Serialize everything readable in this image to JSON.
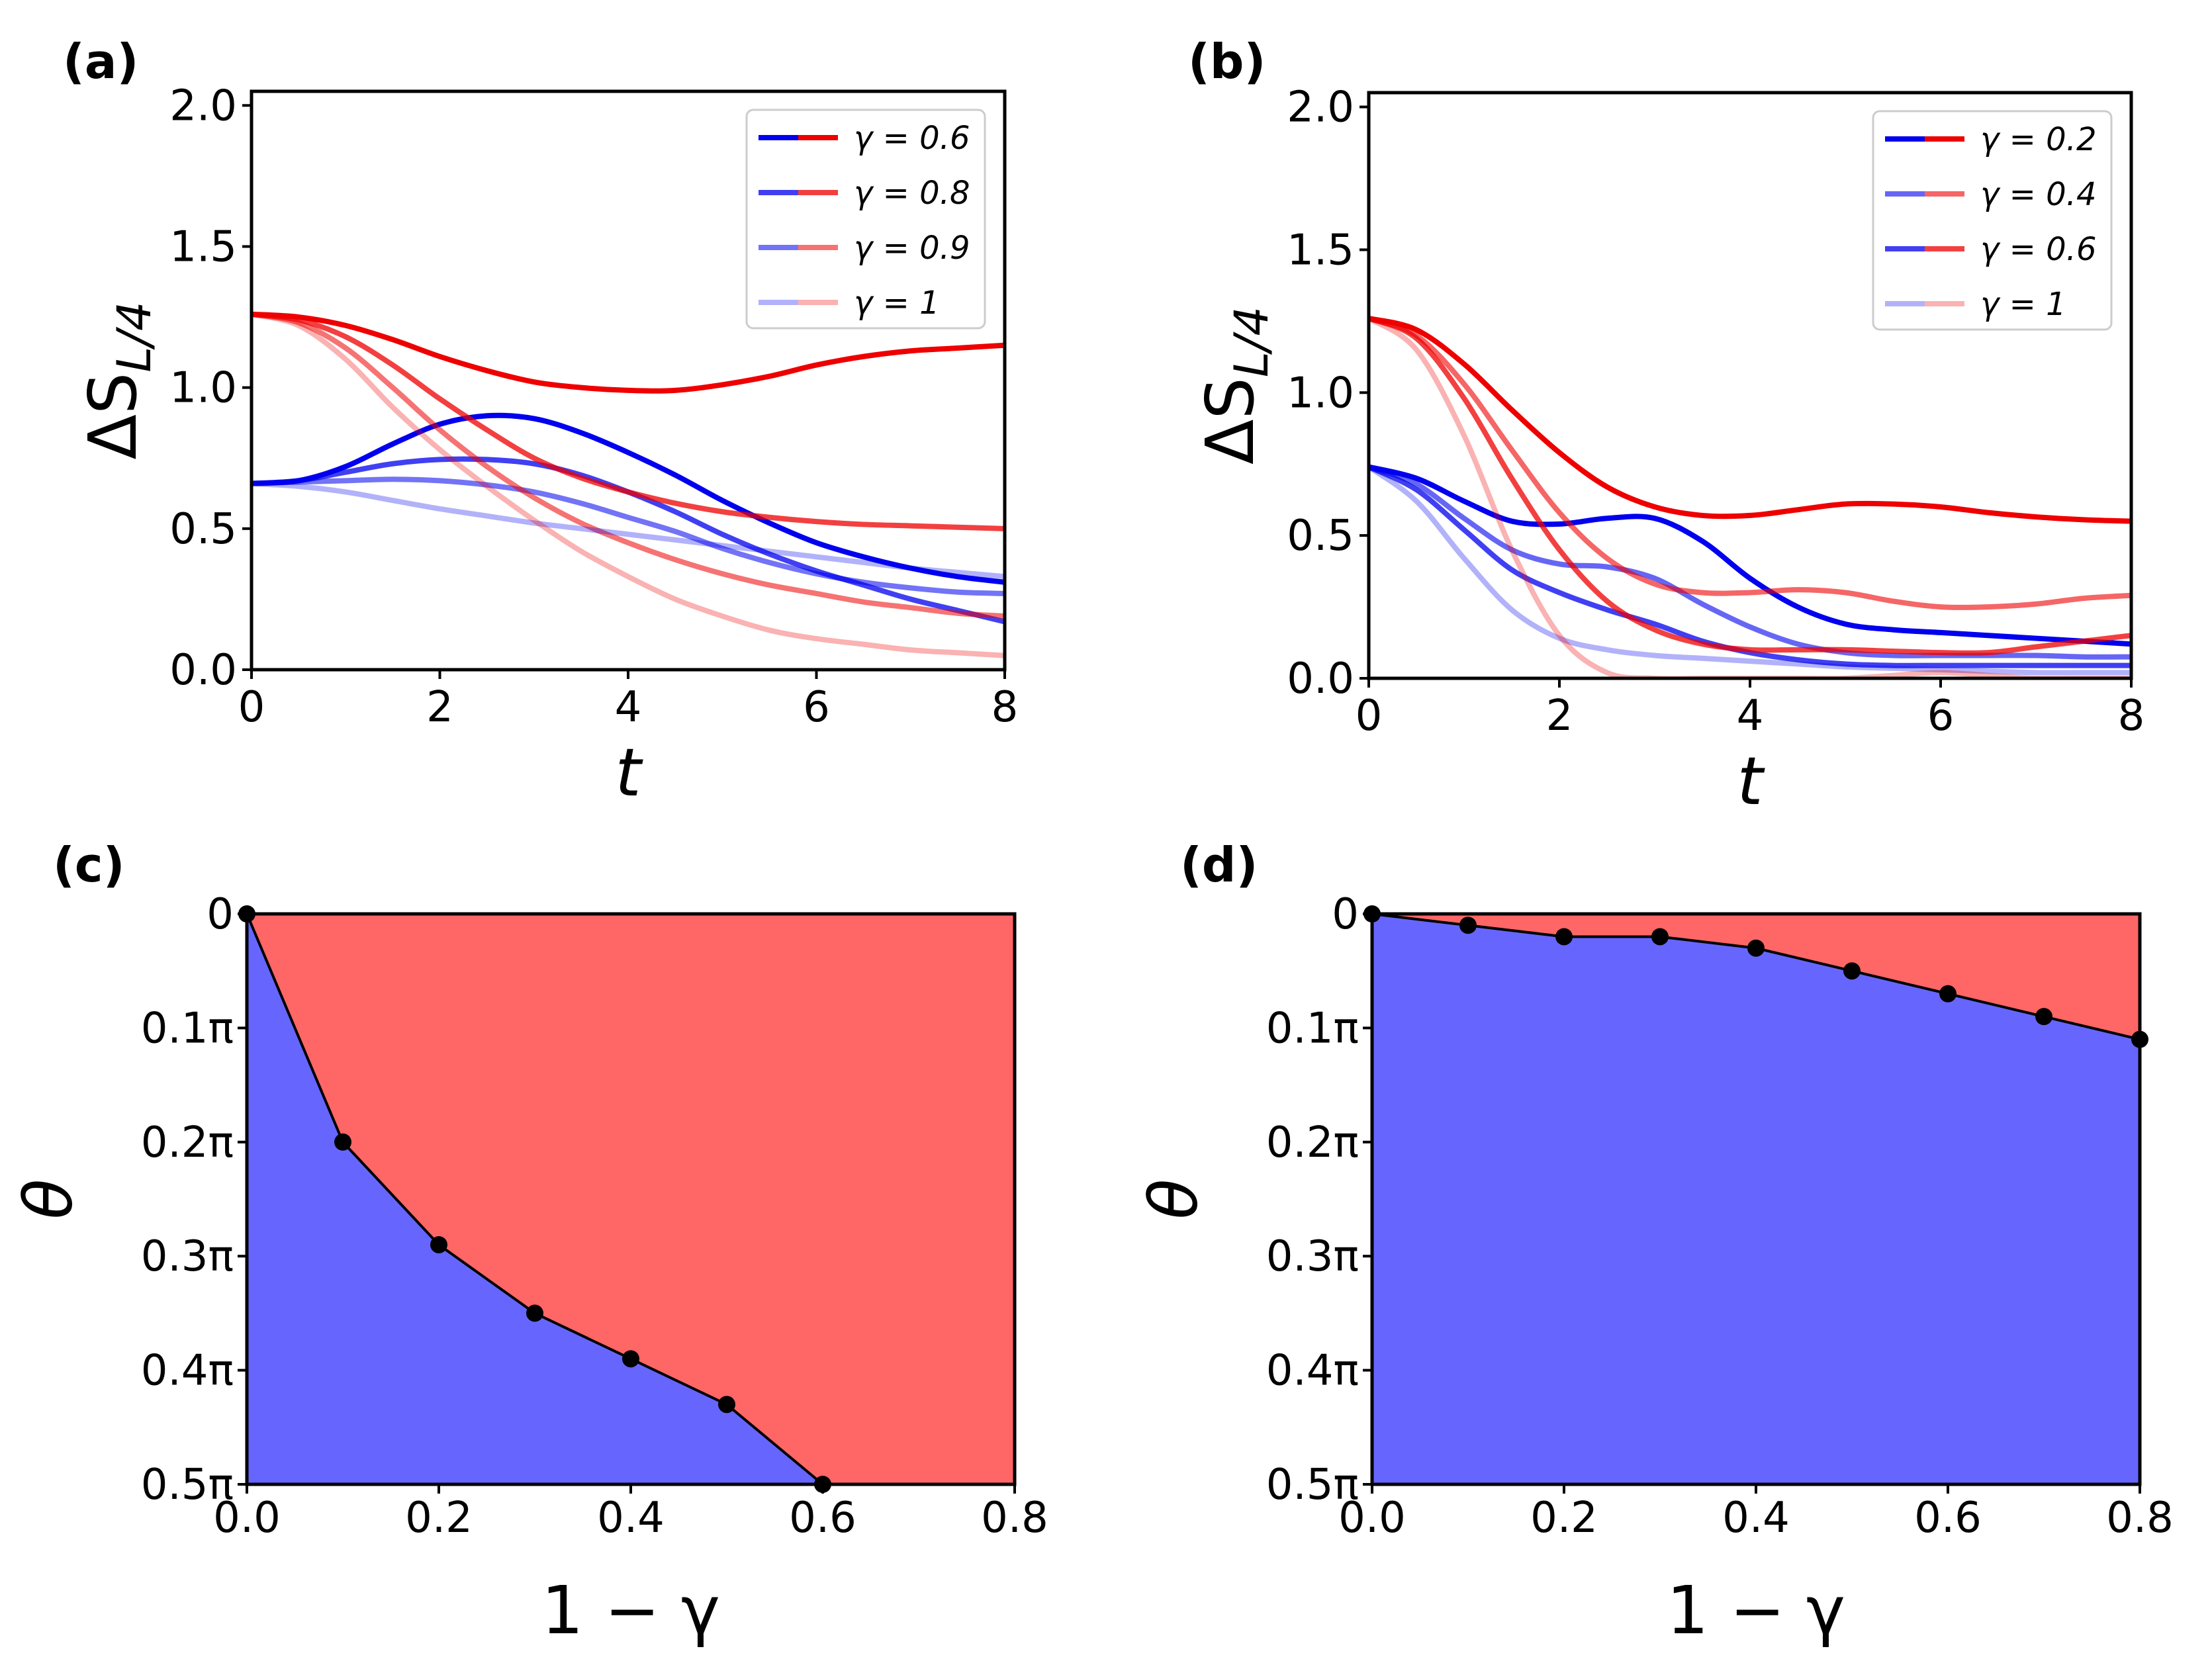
{
  "figure": {
    "panels": [
      "(a)",
      "(b)",
      "(c)",
      "(d)"
    ]
  },
  "chart_data": [
    {
      "id": "a",
      "panel_label": "(a)",
      "type": "line",
      "xlabel": "t",
      "ylabel": "ΔS_{L/4}",
      "ylabel_parts": {
        "main": "ΔS",
        "sub": "L/4"
      },
      "xlim": [
        0,
        8
      ],
      "ylim": [
        0,
        2.05
      ],
      "xticks": [
        0,
        2,
        4,
        6,
        8
      ],
      "xtick_labels": [
        "0",
        "2",
        "4",
        "6",
        "8"
      ],
      "yticks": [
        0,
        0.5,
        1,
        1.5,
        2
      ],
      "ytick_labels": [
        "0.0",
        "0.5",
        "1.0",
        "1.5",
        "2.0"
      ],
      "legend_position": "top-right",
      "legend": [
        {
          "label": "γ = 0.6",
          "alpha": 1.0
        },
        {
          "label": "γ = 0.8",
          "alpha": 0.75
        },
        {
          "label": "γ = 0.9",
          "alpha": 0.55
        },
        {
          "label": "γ = 1",
          "alpha": 0.3
        }
      ],
      "colors": {
        "blue": "#0000ee",
        "red": "#ee0000"
      },
      "series": [
        {
          "name": "blue γ=0.6",
          "color": "#0000ee",
          "alpha": 1.0,
          "x": [
            0,
            0.5,
            1,
            1.5,
            2,
            2.5,
            3,
            3.5,
            4,
            4.5,
            5,
            5.5,
            6,
            6.5,
            7,
            7.5,
            8
          ],
          "y": [
            0.66,
            0.67,
            0.72,
            0.8,
            0.87,
            0.9,
            0.89,
            0.84,
            0.77,
            0.69,
            0.6,
            0.52,
            0.45,
            0.4,
            0.36,
            0.33,
            0.31
          ]
        },
        {
          "name": "red γ=0.6",
          "color": "#ee0000",
          "alpha": 1.0,
          "x": [
            0,
            0.5,
            1,
            1.5,
            2,
            2.5,
            3,
            3.5,
            4,
            4.5,
            5,
            5.5,
            6,
            6.5,
            7,
            7.5,
            8
          ],
          "y": [
            1.26,
            1.25,
            1.22,
            1.17,
            1.11,
            1.06,
            1.02,
            1.0,
            0.99,
            0.99,
            1.01,
            1.04,
            1.08,
            1.11,
            1.13,
            1.14,
            1.15
          ]
        },
        {
          "name": "blue γ=0.8",
          "color": "#0000ee",
          "alpha": 0.75,
          "x": [
            0,
            0.5,
            1,
            1.5,
            2,
            2.5,
            3,
            3.5,
            4,
            4.5,
            5,
            5.5,
            6,
            6.5,
            7,
            7.5,
            8
          ],
          "y": [
            0.66,
            0.67,
            0.7,
            0.73,
            0.745,
            0.745,
            0.73,
            0.69,
            0.63,
            0.56,
            0.48,
            0.41,
            0.35,
            0.3,
            0.25,
            0.21,
            0.17
          ]
        },
        {
          "name": "red γ=0.8",
          "color": "#ee0000",
          "alpha": 0.75,
          "x": [
            0,
            0.5,
            1,
            1.5,
            2,
            2.5,
            3,
            3.5,
            4,
            4.5,
            5,
            5.5,
            6,
            6.5,
            7,
            7.5,
            8
          ],
          "y": [
            1.26,
            1.24,
            1.18,
            1.08,
            0.96,
            0.85,
            0.75,
            0.68,
            0.63,
            0.59,
            0.56,
            0.54,
            0.525,
            0.515,
            0.51,
            0.505,
            0.5
          ]
        },
        {
          "name": "blue γ=0.9",
          "color": "#0000ee",
          "alpha": 0.55,
          "x": [
            0,
            0.5,
            1,
            1.5,
            2,
            2.5,
            3,
            3.5,
            4,
            4.5,
            5,
            5.5,
            6,
            6.5,
            7,
            7.5,
            8
          ],
          "y": [
            0.66,
            0.665,
            0.67,
            0.675,
            0.67,
            0.655,
            0.63,
            0.59,
            0.54,
            0.49,
            0.43,
            0.38,
            0.34,
            0.31,
            0.29,
            0.275,
            0.27
          ]
        },
        {
          "name": "red γ=0.9",
          "color": "#ee0000",
          "alpha": 0.55,
          "x": [
            0,
            0.5,
            1,
            1.5,
            2,
            2.5,
            3,
            3.5,
            4,
            4.5,
            5,
            5.5,
            6,
            6.5,
            7,
            7.5,
            8
          ],
          "y": [
            1.26,
            1.23,
            1.14,
            1.0,
            0.85,
            0.72,
            0.61,
            0.52,
            0.45,
            0.39,
            0.34,
            0.3,
            0.27,
            0.24,
            0.22,
            0.2,
            0.19
          ]
        },
        {
          "name": "blue γ=1",
          "color": "#0000ee",
          "alpha": 0.3,
          "x": [
            0,
            0.5,
            1,
            1.5,
            2,
            2.5,
            3,
            3.5,
            4,
            4.5,
            5,
            5.5,
            6,
            6.5,
            7,
            7.5,
            8
          ],
          "y": [
            0.66,
            0.65,
            0.63,
            0.6,
            0.57,
            0.545,
            0.52,
            0.5,
            0.48,
            0.46,
            0.44,
            0.42,
            0.4,
            0.38,
            0.36,
            0.345,
            0.33
          ]
        },
        {
          "name": "red γ=1",
          "color": "#ee0000",
          "alpha": 0.3,
          "x": [
            0,
            0.5,
            1,
            1.5,
            2,
            2.5,
            3,
            3.5,
            4,
            4.5,
            5,
            5.5,
            6,
            6.5,
            7,
            7.5,
            8
          ],
          "y": [
            1.26,
            1.22,
            1.1,
            0.93,
            0.78,
            0.65,
            0.53,
            0.42,
            0.33,
            0.25,
            0.19,
            0.14,
            0.11,
            0.09,
            0.07,
            0.06,
            0.05
          ]
        }
      ]
    },
    {
      "id": "b",
      "panel_label": "(b)",
      "type": "line",
      "xlabel": "t",
      "ylabel": "ΔS_{L/4}",
      "ylabel_parts": {
        "main": "ΔS",
        "sub": "L/4"
      },
      "xlim": [
        0,
        8
      ],
      "ylim": [
        0,
        2.05
      ],
      "xticks": [
        0,
        2,
        4,
        6,
        8
      ],
      "xtick_labels": [
        "0",
        "2",
        "4",
        "6",
        "8"
      ],
      "yticks": [
        0,
        0.5,
        1,
        1.5,
        2
      ],
      "ytick_labels": [
        "0.0",
        "0.5",
        "1.0",
        "1.5",
        "2.0"
      ],
      "legend_position": "top-right",
      "legend": [
        {
          "label": "γ = 0.2",
          "alpha": 1.0
        },
        {
          "label": "γ = 0.4",
          "alpha": 0.6
        },
        {
          "label": "γ = 0.6",
          "alpha": 0.75
        },
        {
          "label": "γ = 1",
          "alpha": 0.3
        }
      ],
      "colors": {
        "blue": "#0000ee",
        "red": "#ee0000"
      },
      "series": [
        {
          "name": "blue γ=0.2",
          "color": "#0000ee",
          "alpha": 1.0,
          "x": [
            0,
            0.5,
            1,
            1.5,
            2,
            2.5,
            3,
            3.5,
            4,
            4.5,
            5,
            5.5,
            6,
            6.5,
            7,
            7.5,
            8
          ],
          "y": [
            0.74,
            0.7,
            0.62,
            0.55,
            0.54,
            0.56,
            0.56,
            0.48,
            0.35,
            0.25,
            0.19,
            0.17,
            0.16,
            0.15,
            0.14,
            0.13,
            0.12
          ]
        },
        {
          "name": "red γ=0.2",
          "color": "#ee0000",
          "alpha": 1.0,
          "x": [
            0,
            0.5,
            1,
            1.5,
            2,
            2.5,
            3,
            3.5,
            4,
            4.5,
            5,
            5.5,
            6,
            6.5,
            7,
            7.5,
            8
          ],
          "y": [
            1.26,
            1.22,
            1.1,
            0.94,
            0.79,
            0.67,
            0.6,
            0.57,
            0.57,
            0.59,
            0.61,
            0.61,
            0.6,
            0.58,
            0.565,
            0.555,
            0.55
          ]
        },
        {
          "name": "blue γ=0.4",
          "color": "#0000ee",
          "alpha": 0.6,
          "x": [
            0,
            0.5,
            1,
            1.5,
            2,
            2.5,
            3,
            3.5,
            4,
            4.5,
            5,
            5.5,
            6,
            6.5,
            7,
            7.5,
            8
          ],
          "y": [
            0.74,
            0.68,
            0.56,
            0.45,
            0.4,
            0.39,
            0.35,
            0.26,
            0.18,
            0.12,
            0.09,
            0.08,
            0.08,
            0.08,
            0.08,
            0.075,
            0.075
          ]
        },
        {
          "name": "red γ=0.4",
          "color": "#ee0000",
          "alpha": 0.6,
          "x": [
            0,
            0.5,
            1,
            1.5,
            2,
            2.5,
            3,
            3.5,
            4,
            4.5,
            5,
            5.5,
            6,
            6.5,
            7,
            7.5,
            8
          ],
          "y": [
            1.26,
            1.2,
            1.03,
            0.8,
            0.58,
            0.42,
            0.33,
            0.3,
            0.3,
            0.31,
            0.3,
            0.27,
            0.25,
            0.25,
            0.26,
            0.28,
            0.29
          ]
        },
        {
          "name": "blue γ=0.6",
          "color": "#0000ee",
          "alpha": 0.75,
          "x": [
            0,
            0.5,
            1,
            1.5,
            2,
            2.5,
            3,
            3.5,
            4,
            4.5,
            5,
            5.5,
            6,
            6.5,
            7,
            7.5,
            8
          ],
          "y": [
            0.74,
            0.66,
            0.52,
            0.38,
            0.3,
            0.24,
            0.19,
            0.13,
            0.09,
            0.065,
            0.05,
            0.045,
            0.045,
            0.045,
            0.045,
            0.045,
            0.045
          ]
        },
        {
          "name": "red γ=0.6",
          "color": "#ee0000",
          "alpha": 0.75,
          "x": [
            0,
            0.5,
            1,
            1.5,
            2,
            2.5,
            3,
            3.5,
            4,
            4.5,
            5,
            5.5,
            6,
            6.5,
            7,
            7.5,
            8
          ],
          "y": [
            1.26,
            1.19,
            0.98,
            0.7,
            0.45,
            0.27,
            0.17,
            0.12,
            0.1,
            0.1,
            0.1,
            0.095,
            0.09,
            0.09,
            0.11,
            0.13,
            0.15
          ]
        },
        {
          "name": "blue γ=1",
          "color": "#0000ee",
          "alpha": 0.3,
          "x": [
            0,
            0.5,
            1,
            1.5,
            2,
            2.5,
            3,
            3.5,
            4,
            4.5,
            5,
            5.5,
            6,
            6.5,
            7,
            7.5,
            8
          ],
          "y": [
            0.74,
            0.62,
            0.42,
            0.24,
            0.14,
            0.1,
            0.08,
            0.07,
            0.06,
            0.05,
            0.04,
            0.035,
            0.03,
            0.025,
            0.02,
            0.02,
            0.02
          ]
        },
        {
          "name": "red γ=1",
          "color": "#ee0000",
          "alpha": 0.3,
          "x": [
            0,
            0.5,
            1,
            1.5,
            2,
            2.5,
            3,
            3.5,
            4,
            4.5,
            5,
            5.5,
            6,
            6.5,
            7,
            7.5,
            8
          ],
          "y": [
            1.26,
            1.15,
            0.85,
            0.45,
            0.15,
            0.02,
            0.0,
            0.0,
            0.0,
            0.0,
            0.0,
            0.01,
            0.02,
            0.01,
            0.0,
            0.0,
            0.0
          ]
        }
      ]
    },
    {
      "id": "c",
      "panel_label": "(c)",
      "type": "area",
      "xlabel": "1 − γ",
      "ylabel": "θ",
      "xlim": [
        0,
        0.8
      ],
      "ylim_top_to_bottom": [
        0,
        0.5
      ],
      "xticks": [
        0,
        0.2,
        0.4,
        0.6,
        0.8
      ],
      "xtick_labels": [
        "0.0",
        "0.2",
        "0.4",
        "0.6",
        "0.8"
      ],
      "yticks": [
        0,
        0.1,
        0.2,
        0.3,
        0.4,
        0.5
      ],
      "ytick_labels": [
        "0",
        "0.1π",
        "0.2π",
        "0.3π",
        "0.4π",
        "0.5π"
      ],
      "upper_region_color": "#ff6666",
      "lower_region_color": "#6666ff",
      "boundary": {
        "x": [
          0,
          0.1,
          0.2,
          0.3,
          0.4,
          0.5,
          0.6
        ],
        "y": [
          0,
          0.2,
          0.29,
          0.35,
          0.39,
          0.43,
          0.5
        ]
      }
    },
    {
      "id": "d",
      "panel_label": "(d)",
      "type": "area",
      "xlabel": "1 − γ",
      "ylabel": "θ",
      "xlim": [
        0,
        0.8
      ],
      "ylim_top_to_bottom": [
        0,
        0.5
      ],
      "xticks": [
        0,
        0.2,
        0.4,
        0.6,
        0.8
      ],
      "xtick_labels": [
        "0.0",
        "0.2",
        "0.4",
        "0.6",
        "0.8"
      ],
      "yticks": [
        0,
        0.1,
        0.2,
        0.3,
        0.4,
        0.5
      ],
      "ytick_labels": [
        "0",
        "0.1π",
        "0.2π",
        "0.3π",
        "0.4π",
        "0.5π"
      ],
      "upper_region_color": "#ff6666",
      "lower_region_color": "#6666ff",
      "boundary": {
        "x": [
          0,
          0.1,
          0.2,
          0.3,
          0.4,
          0.5,
          0.6,
          0.7,
          0.8
        ],
        "y": [
          0,
          0.01,
          0.02,
          0.02,
          0.03,
          0.05,
          0.07,
          0.09,
          0.11
        ]
      }
    }
  ]
}
